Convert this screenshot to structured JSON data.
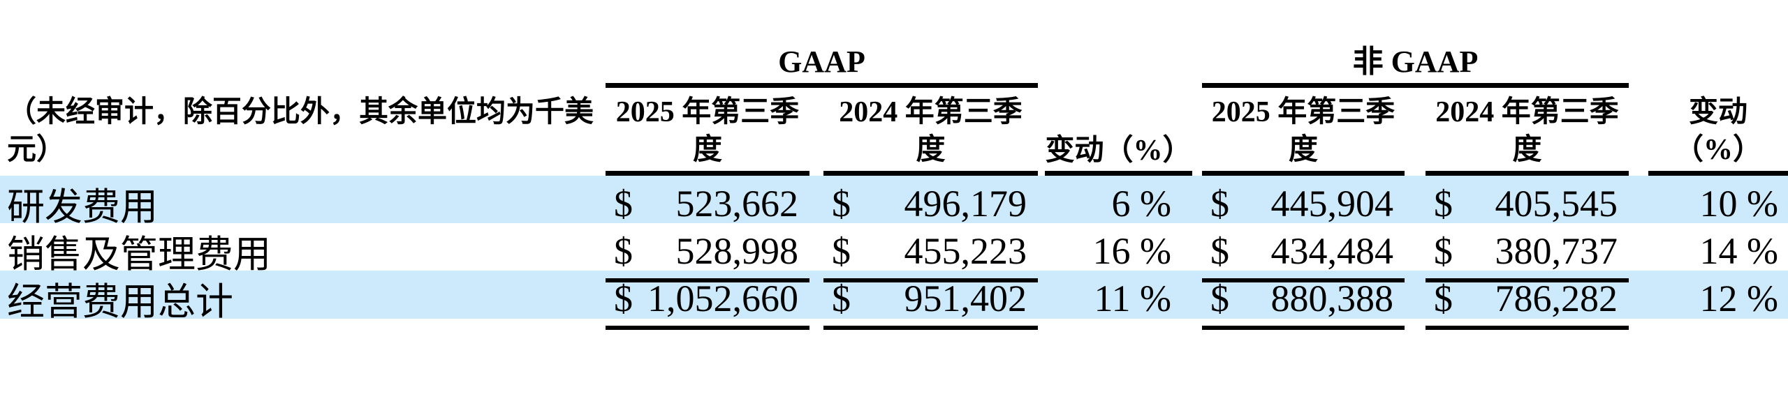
{
  "table": {
    "unit_note_lines": [
      "（未经审计，除百分比外，其余单位均为千美",
      "元）"
    ],
    "groups": {
      "gaap_label": "GAAP",
      "non_gaap_label": "非 GAAP"
    },
    "columns": {
      "q2025_lines": [
        "2025 年第三季",
        "度"
      ],
      "q2024_lines": [
        "2024 年第三季",
        "度"
      ],
      "change_inline": "变动（%）",
      "change_lines": [
        "变动",
        "（%）"
      ]
    },
    "currency": "$",
    "rows": [
      {
        "label": "研发费用",
        "gaap_2025": "523,662",
        "gaap_2024": "496,179",
        "gaap_change": "6 %",
        "non_gaap_2025": "445,904",
        "non_gaap_2024": "405,545",
        "non_gaap_change": "10 %"
      },
      {
        "label": "销售及管理费用",
        "gaap_2025": "528,998",
        "gaap_2024": "455,223",
        "gaap_change": "16 %",
        "non_gaap_2025": "434,484",
        "non_gaap_2024": "380,737",
        "non_gaap_change": "14 %"
      },
      {
        "label": "经营费用总计",
        "gaap_2025": "1,052,660",
        "gaap_2024": "951,402",
        "gaap_change": "11 %",
        "non_gaap_2025": "880,388",
        "non_gaap_2024": "786,282",
        "non_gaap_change": "12 %"
      }
    ],
    "colors": {
      "highlight_row": "#cceafb",
      "text": "#000000",
      "rule": "#000000"
    }
  }
}
